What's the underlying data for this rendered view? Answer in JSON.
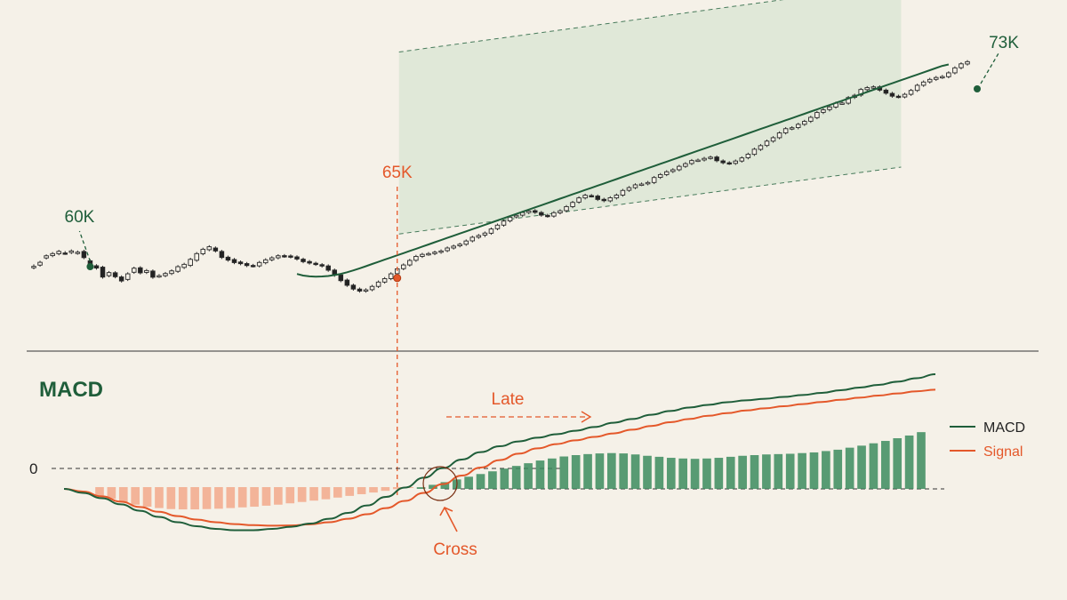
{
  "colors": {
    "background": "#f5f1e8",
    "green": "#1f5e3a",
    "green_hist": "#3c8c5e",
    "orange": "#e4582a",
    "orange_hist": "#f2a585",
    "band_fill": "#dce6d5",
    "candle_outline": "#2a2a2a"
  },
  "chart_data": [
    {
      "type": "candlestick",
      "title": "",
      "annotations": [
        {
          "label": "60K",
          "at_index": 9,
          "value": 60000
        },
        {
          "label": "65K",
          "at_index": 58,
          "value": 65000
        },
        {
          "label": "73K",
          "at_index": 136,
          "value": 73000
        }
      ],
      "closes": [
        60020,
        60280,
        60700,
        60840,
        60980,
        60860,
        61010,
        60930,
        60580,
        60000,
        59910,
        59330,
        59620,
        59350,
        59080,
        59540,
        59900,
        59600,
        59750,
        59320,
        59420,
        59560,
        59730,
        60000,
        60150,
        60470,
        60840,
        61120,
        61280,
        61010,
        60590,
        60420,
        60260,
        60190,
        60070,
        60050,
        60270,
        60440,
        60570,
        60700,
        60670,
        60630,
        60490,
        60320,
        60230,
        60150,
        60040,
        59770,
        59450,
        59100,
        58800,
        58560,
        58430,
        58510,
        58730,
        59010,
        59230,
        59540,
        59860,
        60110,
        60400,
        60660,
        60790,
        60840,
        60930,
        61010,
        61200,
        61320,
        61440,
        61650,
        61890,
        62000,
        62160,
        62420,
        62670,
        62930,
        63180,
        63300,
        63480,
        63580,
        63490,
        63310,
        63250,
        63470,
        63590,
        63860,
        64130,
        64420,
        64590,
        64550,
        64320,
        64240,
        64430,
        64600,
        64900,
        65080,
        65260,
        65310,
        65410,
        65730,
        65920,
        66100,
        66230,
        66450,
        66620,
        66820,
        66850,
        66960,
        67040,
        66810,
        66680,
        66640,
        66790,
        66990,
        67230,
        67550,
        67780,
        68070,
        68290,
        68600,
        68870,
        68930,
        69150,
        69340,
        69600,
        69910,
        70080,
        70270,
        70510,
        70520,
        70870,
        71020,
        71390,
        71510,
        71560,
        71350,
        71150,
        70960,
        70920,
        71080,
        71330,
        71660,
        71870,
        72040,
        72160,
        72220,
        72460,
        72780,
        73040,
        73180
      ],
      "opens": [
        59930,
        60100,
        60560,
        60710,
        60830,
        60880,
        60910,
        60870,
        60980,
        60380,
        60060,
        59970,
        59420,
        59610,
        59340,
        59180,
        59640,
        59930,
        59630,
        59720,
        59380,
        59420,
        59560,
        59700,
        59950,
        60080,
        60410,
        60830,
        61090,
        61200,
        60980,
        60610,
        60460,
        60300,
        60200,
        60080,
        60050,
        60250,
        60440,
        60570,
        60710,
        60690,
        60630,
        60480,
        60330,
        60220,
        60130,
        60050,
        59780,
        59470,
        59140,
        58810,
        58560,
        58430,
        58520,
        58730,
        59010,
        59230,
        59550,
        59870,
        60110,
        60410,
        60660,
        60800,
        60840,
        60930,
        61030,
        61200,
        61340,
        61440,
        61660,
        61890,
        62030,
        62150,
        62440,
        62670,
        62940,
        63200,
        63310,
        63480,
        63600,
        63480,
        63300,
        63250,
        63460,
        63600,
        63860,
        64150,
        64420,
        64570,
        64540,
        64330,
        64230,
        64420,
        64600,
        64910,
        65080,
        65280,
        65330,
        65410,
        65740,
        65920,
        66120,
        66230,
        66450,
        66630,
        66830,
        66860,
        66980,
        67050,
        66800,
        66680,
        66640,
        66790,
        67000,
        67220,
        67540,
        67790,
        68070,
        68290,
        68600,
        68880,
        68940,
        69150,
        69350,
        69580,
        69920,
        70100,
        70260,
        70520,
        70510,
        70880,
        71030,
        71380,
        71530,
        71560,
        71350,
        71140,
        70960,
        70910,
        71080,
        71330,
        71660,
        71880,
        72040,
        72170,
        72210,
        72460,
        72790,
        73030
      ],
      "highs": [
        60150,
        60380,
        60790,
        60940,
        61080,
        61000,
        61110,
        61040,
        61090,
        60480,
        60160,
        60060,
        59720,
        59710,
        59440,
        59640,
        60000,
        60030,
        59850,
        59820,
        59520,
        59660,
        59830,
        60100,
        60250,
        60570,
        60940,
        61220,
        61380,
        61300,
        61080,
        60710,
        60560,
        60400,
        60300,
        60180,
        60370,
        60540,
        60670,
        60800,
        60810,
        60790,
        60730,
        60580,
        60430,
        60320,
        60230,
        60150,
        59880,
        59570,
        59240,
        58910,
        58660,
        58610,
        58830,
        59110,
        59330,
        59640,
        59960,
        60210,
        60500,
        60760,
        60890,
        60940,
        61030,
        61110,
        61300,
        61420,
        61540,
        61750,
        61990,
        62100,
        62260,
        62520,
        62770,
        63030,
        63280,
        63400,
        63580,
        63680,
        63700,
        63580,
        63400,
        63570,
        63690,
        63960,
        64230,
        64520,
        64690,
        64670,
        64640,
        64430,
        64530,
        64700,
        65000,
        65180,
        65360,
        65410,
        65510,
        65830,
        66020,
        66200,
        66330,
        66550,
        66720,
        66920,
        66950,
        67060,
        67140,
        67150,
        66900,
        66780,
        66890,
        67090,
        67330,
        67650,
        67880,
        68170,
        68390,
        68700,
        68970,
        69030,
        69250,
        69440,
        69700,
        70010,
        70180,
        70370,
        70610,
        70620,
        70970,
        71120,
        71490,
        71610,
        71660,
        71660,
        71450,
        71240,
        71060,
        71180,
        71430,
        71760,
        71970,
        72140,
        72260,
        72320,
        72560,
        72880,
        73140,
        73280
      ],
      "lows": [
        59830,
        60000,
        60460,
        60610,
        60730,
        60760,
        60810,
        60770,
        60480,
        59900,
        59810,
        59230,
        59320,
        59250,
        58980,
        59080,
        59540,
        59500,
        59530,
        59220,
        59280,
        59320,
        59460,
        59600,
        59850,
        59980,
        60310,
        60730,
        60990,
        60910,
        60490,
        60320,
        60160,
        60090,
        59970,
        59950,
        59950,
        60150,
        60340,
        60470,
        60570,
        60530,
        60390,
        60220,
        60130,
        60050,
        59940,
        59670,
        59350,
        59000,
        58700,
        58460,
        58330,
        58330,
        58420,
        58630,
        58910,
        59130,
        59450,
        59770,
        60010,
        60310,
        60560,
        60700,
        60740,
        60830,
        60930,
        61100,
        61240,
        61340,
        61560,
        61790,
        61900,
        62050,
        62340,
        62570,
        62840,
        63100,
        63210,
        63380,
        63390,
        63210,
        63150,
        63150,
        63360,
        63500,
        63760,
        64050,
        64320,
        64450,
        64220,
        64140,
        64130,
        64320,
        64500,
        64810,
        64980,
        65180,
        65230,
        65310,
        65640,
        65820,
        66020,
        66130,
        66350,
        66530,
        66730,
        66760,
        66880,
        66710,
        66580,
        66540,
        66540,
        66690,
        66900,
        67120,
        67440,
        67690,
        67970,
        68190,
        68500,
        68770,
        68830,
        69050,
        69240,
        69480,
        69810,
        69980,
        70160,
        70410,
        70410,
        70780,
        70920,
        71280,
        71420,
        71250,
        71050,
        70860,
        70820,
        70820,
        70980,
        71230,
        71560,
        71770,
        71940,
        72070,
        72110,
        72360,
        72680,
        72930
      ],
      "moving_average": {
        "from_index": 42,
        "values": [
          59530,
          59430,
          59380,
          59360,
          59370,
          59400,
          59460,
          59540,
          59640,
          59760,
          59890,
          60030,
          60170,
          60310,
          60450,
          60590,
          60730,
          60870,
          61010,
          61150,
          61290,
          61430,
          61570,
          61710,
          61850,
          61990,
          62130,
          62270,
          62410,
          62550,
          62690,
          62830,
          62970,
          63110,
          63250,
          63390,
          63530,
          63670,
          63810,
          63950,
          64090,
          64230,
          64370,
          64510,
          64650,
          64790,
          64930,
          65070,
          65210,
          65350,
          65490,
          65630,
          65770,
          65910,
          66050,
          66190,
          66330,
          66470,
          66610,
          66750,
          66890,
          67030,
          67170,
          67310,
          67450,
          67590,
          67730,
          67870,
          68010,
          68150,
          68290,
          68430,
          68570,
          68710,
          68850,
          68990,
          69130,
          69270,
          69410,
          69550,
          69690,
          69830,
          69970,
          70110,
          70250,
          70390,
          70530,
          70670,
          70810,
          70950,
          71090,
          71230,
          71370,
          71510,
          71650,
          71790,
          71930,
          72070,
          72210,
          72350,
          72490,
          72630,
          72770,
          72910,
          73000
        ]
      },
      "trend_channel": {
        "from_index": 58,
        "to_index": 137
      }
    },
    {
      "type": "line",
      "title": "MACD",
      "zero_label": "0",
      "series": [
        {
          "name": "MACD",
          "values": [
            0.0,
            -0.15,
            -0.35,
            -0.58,
            -0.82,
            -1.05,
            -1.25,
            -1.4,
            -1.5,
            -1.55,
            -1.55,
            -1.5,
            -1.42,
            -1.3,
            -1.12,
            -0.9,
            -0.62,
            -0.3,
            0.05,
            0.42,
            0.78,
            1.1,
            1.38,
            1.6,
            1.78,
            1.92,
            2.05,
            2.18,
            2.32,
            2.48,
            2.62,
            2.78,
            2.92,
            3.05,
            3.15,
            3.25,
            3.32,
            3.38,
            3.45,
            3.52,
            3.6,
            3.7,
            3.8,
            3.9,
            4.02,
            4.15,
            4.3
          ]
        },
        {
          "name": "Signal",
          "values": [
            0.0,
            -0.1,
            -0.28,
            -0.48,
            -0.68,
            -0.86,
            -1.02,
            -1.15,
            -1.25,
            -1.32,
            -1.36,
            -1.38,
            -1.37,
            -1.33,
            -1.25,
            -1.12,
            -0.95,
            -0.72,
            -0.45,
            -0.15,
            0.18,
            0.5,
            0.8,
            1.08,
            1.32,
            1.52,
            1.68,
            1.82,
            1.95,
            2.08,
            2.22,
            2.36,
            2.5,
            2.62,
            2.74,
            2.84,
            2.94,
            3.02,
            3.1,
            3.18,
            3.26,
            3.34,
            3.42,
            3.5,
            3.58,
            3.66,
            3.72
          ]
        }
      ],
      "histogram": [
        -0.25,
        -0.35,
        -0.45,
        -0.52,
        -0.58,
        -0.62,
        -0.65,
        -0.66,
        -0.66,
        -0.65,
        -0.64,
        -0.62,
        -0.6,
        -0.58,
        -0.55,
        -0.52,
        -0.48,
        -0.44,
        -0.4,
        -0.36,
        -0.31,
        -0.26,
        -0.21,
        -0.16,
        -0.11,
        -0.06,
        -0.01,
        0.05,
        0.12,
        0.2,
        0.28,
        0.36,
        0.44,
        0.52,
        0.6,
        0.68,
        0.76,
        0.84,
        0.9,
        0.96,
        1.0,
        1.03,
        1.05,
        1.06,
        1.05,
        1.02,
        0.98,
        0.95,
        0.92,
        0.9,
        0.89,
        0.9,
        0.92,
        0.95,
        0.98,
        1.0,
        1.02,
        1.03,
        1.04,
        1.06,
        1.08,
        1.12,
        1.16,
        1.22,
        1.28,
        1.35,
        1.42,
        1.5,
        1.58,
        1.68
      ],
      "legend": [
        {
          "name": "MACD",
          "color": "#1f5e3a"
        },
        {
          "name": "Signal",
          "color": "#e4582a"
        }
      ],
      "legend_position": "right",
      "annotations": [
        {
          "label": "Cross"
        },
        {
          "label": "Late"
        }
      ]
    }
  ]
}
